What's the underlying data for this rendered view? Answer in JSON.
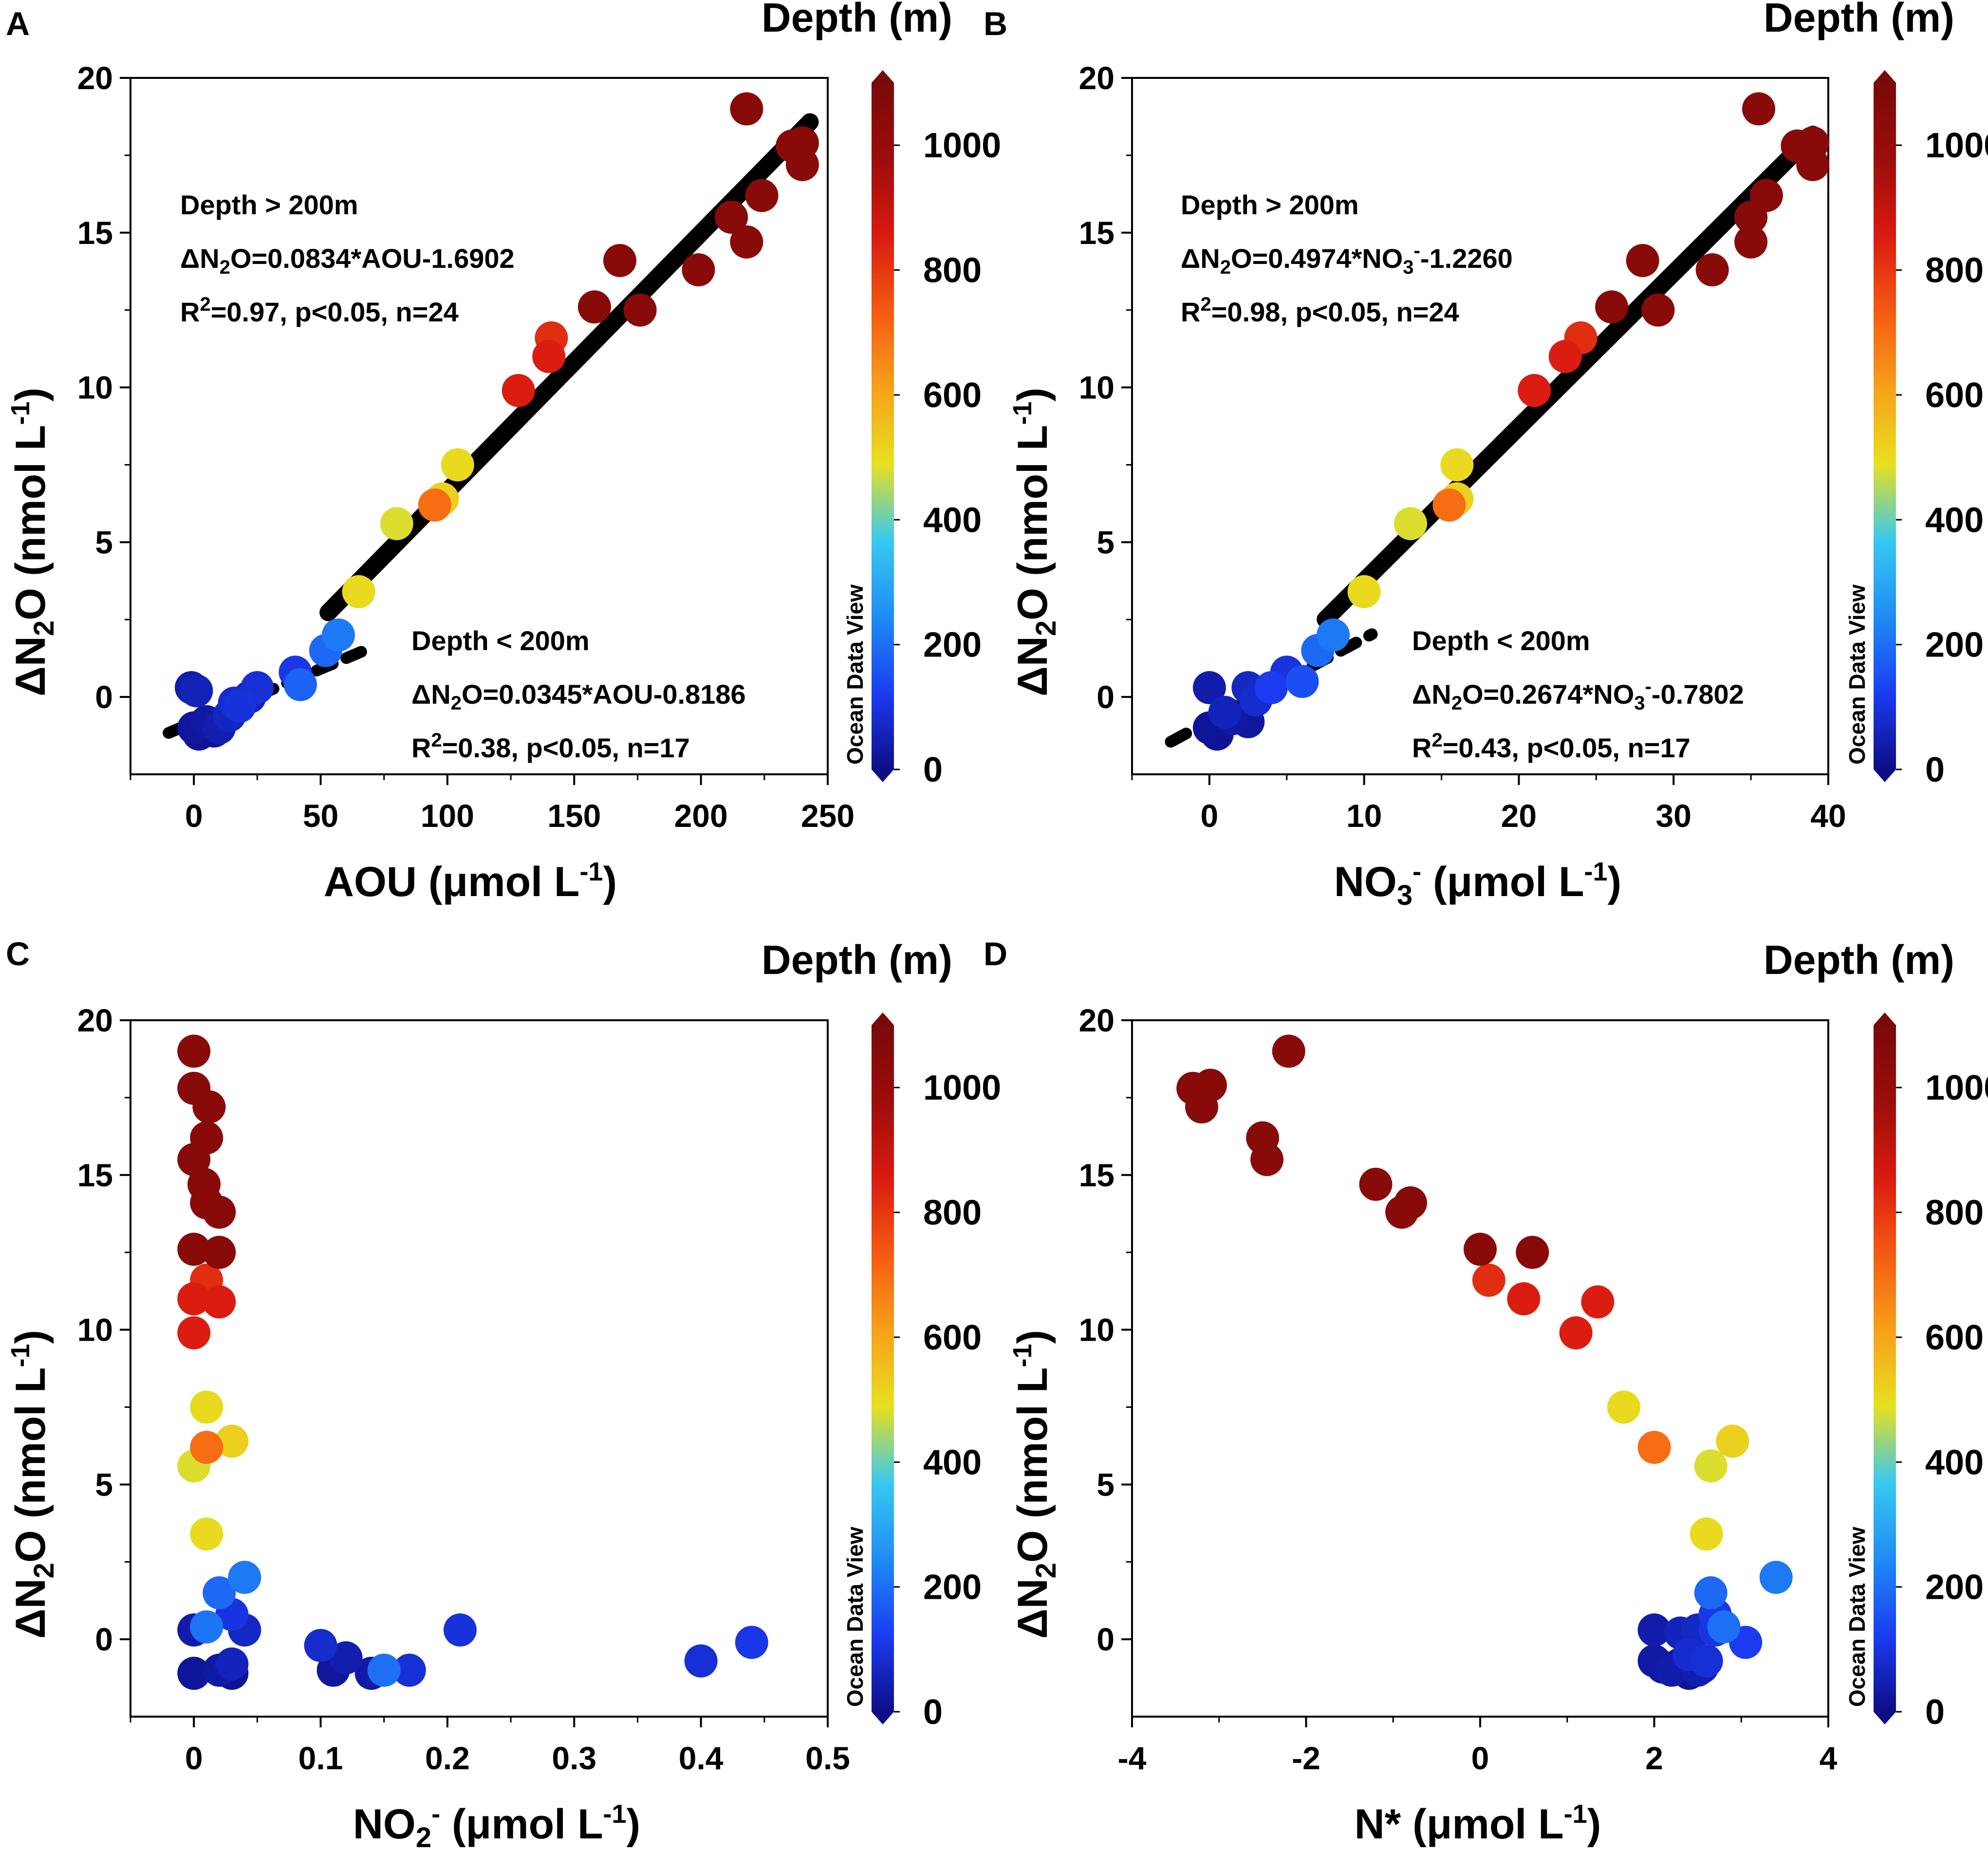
{
  "colorbar": {
    "title": "Depth (m)",
    "ticks": [
      "0",
      "200",
      "400",
      "600",
      "800",
      "1000"
    ],
    "tick_values": [
      0,
      200,
      400,
      600,
      800,
      1000
    ],
    "range": [
      0,
      1100
    ],
    "watermark": "Ocean Data View",
    "colors": [
      "#0d0d87",
      "#1a3cf2",
      "#1f8cf5",
      "#37c9f0",
      "#e8e020",
      "#f7a01a",
      "#f55a12",
      "#d91a10",
      "#9c0d0b",
      "#7a0a09"
    ]
  },
  "chart_data": [
    {
      "type": "scatter",
      "panel": "A",
      "xlabel": "AOU (μmol L-1)",
      "ylabel": "ΔN2O (nmol L-1)",
      "xlim": [
        -25,
        250
      ],
      "ylim": [
        -2.5,
        20
      ],
      "xticks": [
        0,
        50,
        100,
        150,
        200,
        250
      ],
      "yticks": [
        0,
        5,
        10,
        15,
        20
      ],
      "points": [
        {
          "x": -1,
          "y": 0.3,
          "depth": 40
        },
        {
          "x": 1,
          "y": 0.2,
          "depth": 55
        },
        {
          "x": 0,
          "y": -1.0,
          "depth": 25
        },
        {
          "x": 2,
          "y": -1.2,
          "depth": 15
        },
        {
          "x": 5,
          "y": -0.8,
          "depth": 30
        },
        {
          "x": 8,
          "y": -1.1,
          "depth": 10
        },
        {
          "x": 10,
          "y": -1.0,
          "depth": 45
        },
        {
          "x": 14,
          "y": -0.6,
          "depth": 65
        },
        {
          "x": 16,
          "y": -0.2,
          "depth": 80
        },
        {
          "x": 18,
          "y": -0.3,
          "depth": 95
        },
        {
          "x": 22,
          "y": 0.0,
          "depth": 60
        },
        {
          "x": 25,
          "y": 0.3,
          "depth": 90
        },
        {
          "x": 40,
          "y": 0.8,
          "depth": 110
        },
        {
          "x": 42,
          "y": 0.4,
          "depth": 180
        },
        {
          "x": 52,
          "y": 1.5,
          "depth": 190
        },
        {
          "x": 57,
          "y": 2.0,
          "depth": 215
        },
        {
          "x": 65,
          "y": 3.4,
          "depth": 500
        },
        {
          "x": 80,
          "y": 5.6,
          "depth": 480
        },
        {
          "x": 95,
          "y": 6.2,
          "depth": 700
        },
        {
          "x": 98,
          "y": 6.4,
          "depth": 520
        },
        {
          "x": 104,
          "y": 7.5,
          "depth": 500
        },
        {
          "x": 128,
          "y": 9.9,
          "depth": 850
        },
        {
          "x": 140,
          "y": 11.0,
          "depth": 850
        },
        {
          "x": 141,
          "y": 11.6,
          "depth": 820
        },
        {
          "x": 158,
          "y": 12.6,
          "depth": 1050
        },
        {
          "x": 168,
          "y": 14.1,
          "depth": 1050
        },
        {
          "x": 176,
          "y": 12.5,
          "depth": 1050
        },
        {
          "x": 199,
          "y": 13.8,
          "depth": 1050
        },
        {
          "x": 212,
          "y": 15.5,
          "depth": 1050
        },
        {
          "x": 218,
          "y": 14.7,
          "depth": 1050
        },
        {
          "x": 218,
          "y": 19.0,
          "depth": 1050
        },
        {
          "x": 224,
          "y": 16.2,
          "depth": 1050
        },
        {
          "x": 236,
          "y": 17.8,
          "depth": 1050
        },
        {
          "x": 240,
          "y": 17.9,
          "depth": 1050
        },
        {
          "x": 240,
          "y": 17.2,
          "depth": 1050
        }
      ],
      "fits": [
        {
          "style": "solid",
          "slope": 0.0834,
          "intercept": -1.6902,
          "x_range": [
            53,
            243
          ]
        },
        {
          "style": "dashed",
          "slope": 0.0345,
          "intercept": -0.8186,
          "x_range": [
            -10,
            66
          ]
        }
      ],
      "annotations": {
        "upper": [
          "Depth > 200m",
          "ΔN2O=0.0834*AOU-1.6902",
          "R2=0.97, p<0.05, n=24"
        ],
        "lower": [
          "Depth < 200m",
          "ΔN2O=0.0345*AOU-0.8186",
          "R2=0.38, p<0.05, n=17"
        ]
      }
    },
    {
      "type": "scatter",
      "panel": "B",
      "xlabel": "NO3- (μmol L-1)",
      "ylabel": "ΔN2O (nmol L-1)",
      "xlim": [
        -5,
        40
      ],
      "ylim": [
        -2.5,
        20
      ],
      "xticks": [
        0,
        10,
        20,
        30,
        40
      ],
      "yticks": [
        0,
        5,
        10,
        15,
        20
      ],
      "points": [
        {
          "x": 0,
          "y": 0.3,
          "depth": 40
        },
        {
          "x": 0,
          "y": -1.0,
          "depth": 20
        },
        {
          "x": 0.5,
          "y": -1.2,
          "depth": 15
        },
        {
          "x": 1,
          "y": -0.5,
          "depth": 60
        },
        {
          "x": 1.5,
          "y": -0.7,
          "depth": 30
        },
        {
          "x": 2.5,
          "y": -0.8,
          "depth": 25
        },
        {
          "x": 2.5,
          "y": 0.3,
          "depth": 70
        },
        {
          "x": 3,
          "y": -0.1,
          "depth": 80
        },
        {
          "x": 4,
          "y": 0.3,
          "depth": 120
        },
        {
          "x": 5,
          "y": 0.8,
          "depth": 100
        },
        {
          "x": 6,
          "y": 0.5,
          "depth": 150
        },
        {
          "x": 7,
          "y": 1.5,
          "depth": 190
        },
        {
          "x": 8,
          "y": 2.0,
          "depth": 215
        },
        {
          "x": 10,
          "y": 3.4,
          "depth": 500
        },
        {
          "x": 13,
          "y": 5.6,
          "depth": 480
        },
        {
          "x": 15.5,
          "y": 6.2,
          "depth": 700
        },
        {
          "x": 16,
          "y": 6.4,
          "depth": 520
        },
        {
          "x": 16,
          "y": 7.5,
          "depth": 500
        },
        {
          "x": 21,
          "y": 9.9,
          "depth": 850
        },
        {
          "x": 23,
          "y": 11.0,
          "depth": 850
        },
        {
          "x": 24,
          "y": 11.6,
          "depth": 820
        },
        {
          "x": 26,
          "y": 12.6,
          "depth": 1050
        },
        {
          "x": 28,
          "y": 14.1,
          "depth": 1050
        },
        {
          "x": 29,
          "y": 12.5,
          "depth": 1050
        },
        {
          "x": 32.5,
          "y": 13.8,
          "depth": 1050
        },
        {
          "x": 35,
          "y": 15.5,
          "depth": 1050
        },
        {
          "x": 35,
          "y": 14.7,
          "depth": 1050
        },
        {
          "x": 35.5,
          "y": 19.0,
          "depth": 1050
        },
        {
          "x": 36,
          "y": 16.2,
          "depth": 1050
        },
        {
          "x": 38,
          "y": 17.8,
          "depth": 1050
        },
        {
          "x": 39,
          "y": 17.9,
          "depth": 1050
        },
        {
          "x": 39,
          "y": 17.2,
          "depth": 1050
        }
      ],
      "fits": [
        {
          "style": "solid",
          "slope": 0.4974,
          "intercept": -1.226,
          "x_range": [
            7.5,
            39
          ]
        },
        {
          "style": "dashed",
          "slope": 0.2674,
          "intercept": -0.7802,
          "x_range": [
            -2.5,
            10.5
          ]
        }
      ],
      "annotations": {
        "upper": [
          "Depth > 200m",
          "ΔN2O=0.4974*NO3-1.2260",
          "R2=0.98, p<0.05, n=24"
        ],
        "lower": [
          "Depth < 200m",
          "ΔN2O=0.2674*NO3-0.7802",
          "R2=0.43, p<0.05, n=17"
        ]
      }
    },
    {
      "type": "scatter",
      "panel": "C",
      "xlabel": "NO2- (μmol L-1)",
      "ylabel": "ΔN2O (nmol L-1)",
      "xlim": [
        -0.05,
        0.5
      ],
      "ylim": [
        -2.5,
        20
      ],
      "xticks": [
        0,
        0.1,
        0.2,
        0.3,
        0.4,
        0.5
      ],
      "yticks": [
        0,
        5,
        10,
        15,
        20
      ],
      "points": [
        {
          "x": 0,
          "y": 19.0,
          "depth": 1050
        },
        {
          "x": 0,
          "y": 17.8,
          "depth": 1050
        },
        {
          "x": 0.012,
          "y": 17.2,
          "depth": 1050
        },
        {
          "x": 0.01,
          "y": 16.2,
          "depth": 1050
        },
        {
          "x": 0,
          "y": 15.5,
          "depth": 1050
        },
        {
          "x": 0.008,
          "y": 14.7,
          "depth": 1050
        },
        {
          "x": 0.01,
          "y": 14.1,
          "depth": 1050
        },
        {
          "x": 0.02,
          "y": 13.8,
          "depth": 1050
        },
        {
          "x": 0,
          "y": 12.6,
          "depth": 1050
        },
        {
          "x": 0.02,
          "y": 12.5,
          "depth": 1050
        },
        {
          "x": 0.01,
          "y": 11.6,
          "depth": 820
        },
        {
          "x": 0,
          "y": 11.0,
          "depth": 850
        },
        {
          "x": 0.02,
          "y": 10.9,
          "depth": 850
        },
        {
          "x": 0,
          "y": 9.9,
          "depth": 850
        },
        {
          "x": 0.01,
          "y": 7.5,
          "depth": 500
        },
        {
          "x": 0.01,
          "y": 6.2,
          "depth": 700
        },
        {
          "x": 0.03,
          "y": 6.4,
          "depth": 520
        },
        {
          "x": 0,
          "y": 5.6,
          "depth": 480
        },
        {
          "x": 0.01,
          "y": 3.4,
          "depth": 500
        },
        {
          "x": 0.02,
          "y": 1.5,
          "depth": 190
        },
        {
          "x": 0.04,
          "y": 2.0,
          "depth": 215
        },
        {
          "x": 0.01,
          "y": 0.4,
          "depth": 210
        },
        {
          "x": 0.03,
          "y": 0.8,
          "depth": 100
        },
        {
          "x": 0,
          "y": 0.3,
          "depth": 40
        },
        {
          "x": 0.04,
          "y": 0.3,
          "depth": 70
        },
        {
          "x": 0,
          "y": -1.1,
          "depth": 20
        },
        {
          "x": 0.02,
          "y": -1.0,
          "depth": 30
        },
        {
          "x": 0.03,
          "y": -0.8,
          "depth": 60
        },
        {
          "x": 0.03,
          "y": -1.1,
          "depth": 15
        },
        {
          "x": 0.1,
          "y": -0.2,
          "depth": 80
        },
        {
          "x": 0.11,
          "y": -1.0,
          "depth": 25
        },
        {
          "x": 0.12,
          "y": -0.6,
          "depth": 45
        },
        {
          "x": 0.14,
          "y": -1.1,
          "depth": 35
        },
        {
          "x": 0.15,
          "y": -1.0,
          "depth": 200
        },
        {
          "x": 0.17,
          "y": -1.0,
          "depth": 90
        },
        {
          "x": 0.21,
          "y": 0.3,
          "depth": 95
        },
        {
          "x": 0.4,
          "y": -0.7,
          "depth": 90
        },
        {
          "x": 0.44,
          "y": -0.1,
          "depth": 110
        }
      ]
    },
    {
      "type": "scatter",
      "panel": "D",
      "xlabel": "N* (μmol L-1)",
      "ylabel": "ΔN2O (nmol L-1)",
      "xlim": [
        -4,
        4
      ],
      "ylim": [
        -2.5,
        20
      ],
      "xticks": [
        -4,
        -2,
        0,
        2,
        4
      ],
      "yticks": [
        0,
        5,
        10,
        15,
        20
      ],
      "points": [
        {
          "x": -3.3,
          "y": 17.8,
          "depth": 1050
        },
        {
          "x": -3.2,
          "y": 17.2,
          "depth": 1050
        },
        {
          "x": -3.1,
          "y": 17.9,
          "depth": 1050
        },
        {
          "x": -2.2,
          "y": 19.0,
          "depth": 1050
        },
        {
          "x": -2.5,
          "y": 16.2,
          "depth": 1050
        },
        {
          "x": -2.45,
          "y": 15.5,
          "depth": 1050
        },
        {
          "x": -1.2,
          "y": 14.7,
          "depth": 1050
        },
        {
          "x": -0.9,
          "y": 13.8,
          "depth": 1050
        },
        {
          "x": -0.8,
          "y": 14.1,
          "depth": 1050
        },
        {
          "x": 0,
          "y": 12.6,
          "depth": 1050
        },
        {
          "x": 0.6,
          "y": 12.5,
          "depth": 1050
        },
        {
          "x": 0.1,
          "y": 11.6,
          "depth": 820
        },
        {
          "x": 0.5,
          "y": 11.0,
          "depth": 850
        },
        {
          "x": 1.35,
          "y": 10.9,
          "depth": 850
        },
        {
          "x": 1.1,
          "y": 9.9,
          "depth": 850
        },
        {
          "x": 1.65,
          "y": 7.5,
          "depth": 500
        },
        {
          "x": 2.0,
          "y": 6.2,
          "depth": 700
        },
        {
          "x": 2.9,
          "y": 6.4,
          "depth": 520
        },
        {
          "x": 2.65,
          "y": 5.6,
          "depth": 480
        },
        {
          "x": 2.6,
          "y": 3.4,
          "depth": 500
        },
        {
          "x": 3.4,
          "y": 2.0,
          "depth": 215
        },
        {
          "x": 2.65,
          "y": 1.5,
          "depth": 190
        },
        {
          "x": 2.8,
          "y": 0.4,
          "depth": 200
        },
        {
          "x": 2.7,
          "y": 0.8,
          "depth": 110
        },
        {
          "x": 2.0,
          "y": 0.3,
          "depth": 40
        },
        {
          "x": 2.3,
          "y": 0.2,
          "depth": 60
        },
        {
          "x": 2.5,
          "y": 0.3,
          "depth": 70
        },
        {
          "x": 2.7,
          "y": 0.3,
          "depth": 100
        },
        {
          "x": 3.05,
          "y": -0.1,
          "depth": 120
        },
        {
          "x": 2.0,
          "y": -0.7,
          "depth": 30
        },
        {
          "x": 2.1,
          "y": -0.9,
          "depth": 25
        },
        {
          "x": 2.3,
          "y": -0.8,
          "depth": 20
        },
        {
          "x": 2.4,
          "y": -1.1,
          "depth": 15
        },
        {
          "x": 2.55,
          "y": -0.9,
          "depth": 35
        },
        {
          "x": 2.6,
          "y": -0.7,
          "depth": 90
        },
        {
          "x": 2.4,
          "y": -0.5,
          "depth": 80
        },
        {
          "x": 2.2,
          "y": -1.0,
          "depth": 40
        },
        {
          "x": 2.5,
          "y": -1.0,
          "depth": 45
        }
      ]
    }
  ]
}
